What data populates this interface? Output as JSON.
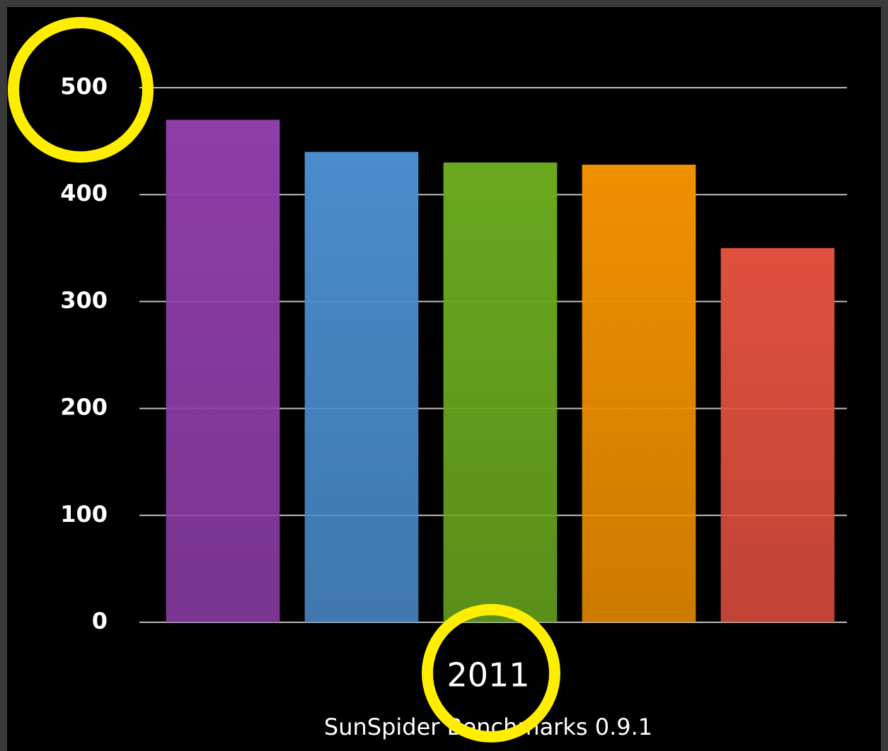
{
  "chart_data": {
    "type": "bar",
    "subtitle": "SunSpider Benchmarks 0.9.1",
    "x_label": "2011",
    "categories": [
      null,
      null,
      null,
      null,
      null
    ],
    "values": [
      470,
      440,
      430,
      428,
      350
    ],
    "colors": [
      "#8e3ea8",
      "#4a8ccc",
      "#6aa81e",
      "#f09000",
      "#e0503f"
    ],
    "ylim": [
      0,
      500
    ],
    "yticks": [
      0,
      100,
      200,
      300,
      400,
      500
    ],
    "grid": true
  }
}
